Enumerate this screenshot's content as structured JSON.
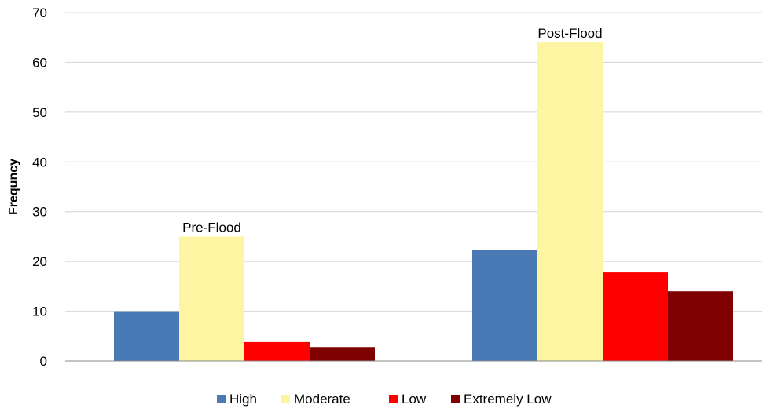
{
  "chart_data": {
    "type": "bar",
    "title": "",
    "xlabel": "",
    "ylabel": "Frequncy",
    "ylim": [
      0,
      70
    ],
    "yticks": [
      0,
      10,
      20,
      30,
      40,
      50,
      60,
      70
    ],
    "grid": true,
    "legend_position": "bottom",
    "categories": [
      "Pre-Flood",
      "Post-Flood"
    ],
    "series": [
      {
        "name": "High",
        "color": "#4a7ab5",
        "values": [
          10,
          22.3
        ]
      },
      {
        "name": "Moderate",
        "color": "#fdf5a1",
        "values": [
          25,
          64
        ]
      },
      {
        "name": "Low",
        "color": "#ff0000",
        "values": [
          3.8,
          17.8
        ]
      },
      {
        "name": "Extremely Low",
        "color": "#7f0000",
        "values": [
          2.8,
          14
        ]
      }
    ]
  }
}
